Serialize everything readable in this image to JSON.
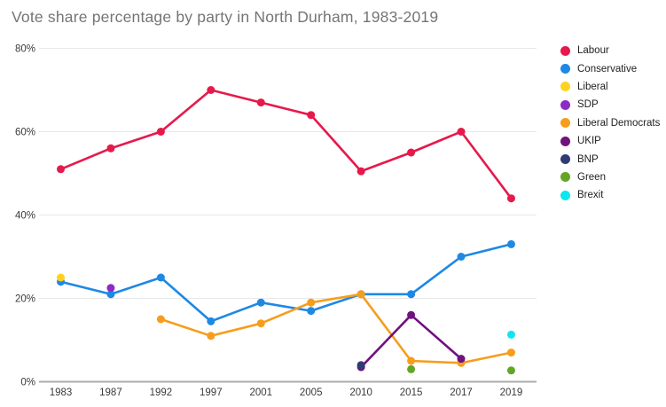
{
  "title": "Vote share percentage by party in North Durham, 1983-2019",
  "chart_data": {
    "type": "line",
    "title": "Vote share percentage by party in North Durham, 1983-2019",
    "categories": [
      "1983",
      "1987",
      "1992",
      "1997",
      "2001",
      "2005",
      "2010",
      "2015",
      "2017",
      "2019"
    ],
    "series": [
      {
        "name": "Labour",
        "color": "#E6194B",
        "values": [
          51,
          56,
          60,
          70,
          67,
          64,
          50.5,
          55,
          60,
          44
        ]
      },
      {
        "name": "Conservative",
        "color": "#1E88E5",
        "values": [
          24,
          21,
          25,
          14.5,
          19,
          17,
          21,
          21,
          30,
          33
        ]
      },
      {
        "name": "Liberal",
        "color": "#FFD21F",
        "values": [
          25,
          null,
          null,
          null,
          null,
          null,
          null,
          null,
          null,
          null
        ]
      },
      {
        "name": "SDP",
        "color": "#8E2BC7",
        "values": [
          null,
          22.5,
          null,
          null,
          null,
          null,
          null,
          null,
          null,
          null
        ]
      },
      {
        "name": "Liberal Democrats",
        "color": "#F79D1C",
        "values": [
          null,
          null,
          15,
          11,
          14,
          19,
          21,
          5,
          4.5,
          7
        ]
      },
      {
        "name": "UKIP",
        "color": "#70127E",
        "values": [
          null,
          null,
          null,
          null,
          null,
          null,
          3.5,
          16,
          5.5,
          null
        ]
      },
      {
        "name": "BNP",
        "color": "#2F3B72",
        "values": [
          null,
          null,
          null,
          null,
          null,
          null,
          4,
          null,
          null,
          null
        ]
      },
      {
        "name": "Green",
        "color": "#63A524",
        "values": [
          null,
          null,
          null,
          null,
          null,
          null,
          null,
          3,
          null,
          2.7
        ]
      },
      {
        "name": "Brexit",
        "color": "#0CE6F0",
        "values": [
          null,
          null,
          null,
          null,
          null,
          null,
          null,
          null,
          null,
          11.3
        ]
      }
    ],
    "xlabel": "",
    "ylabel": "",
    "ylim": [
      0,
      80
    ],
    "yticks": [
      "0%",
      "20%",
      "40%",
      "60%",
      "80%"
    ],
    "ytick_values": [
      0,
      20,
      40,
      60,
      80
    ],
    "grid": true,
    "legend_position": "right",
    "title_color": "#757575"
  }
}
